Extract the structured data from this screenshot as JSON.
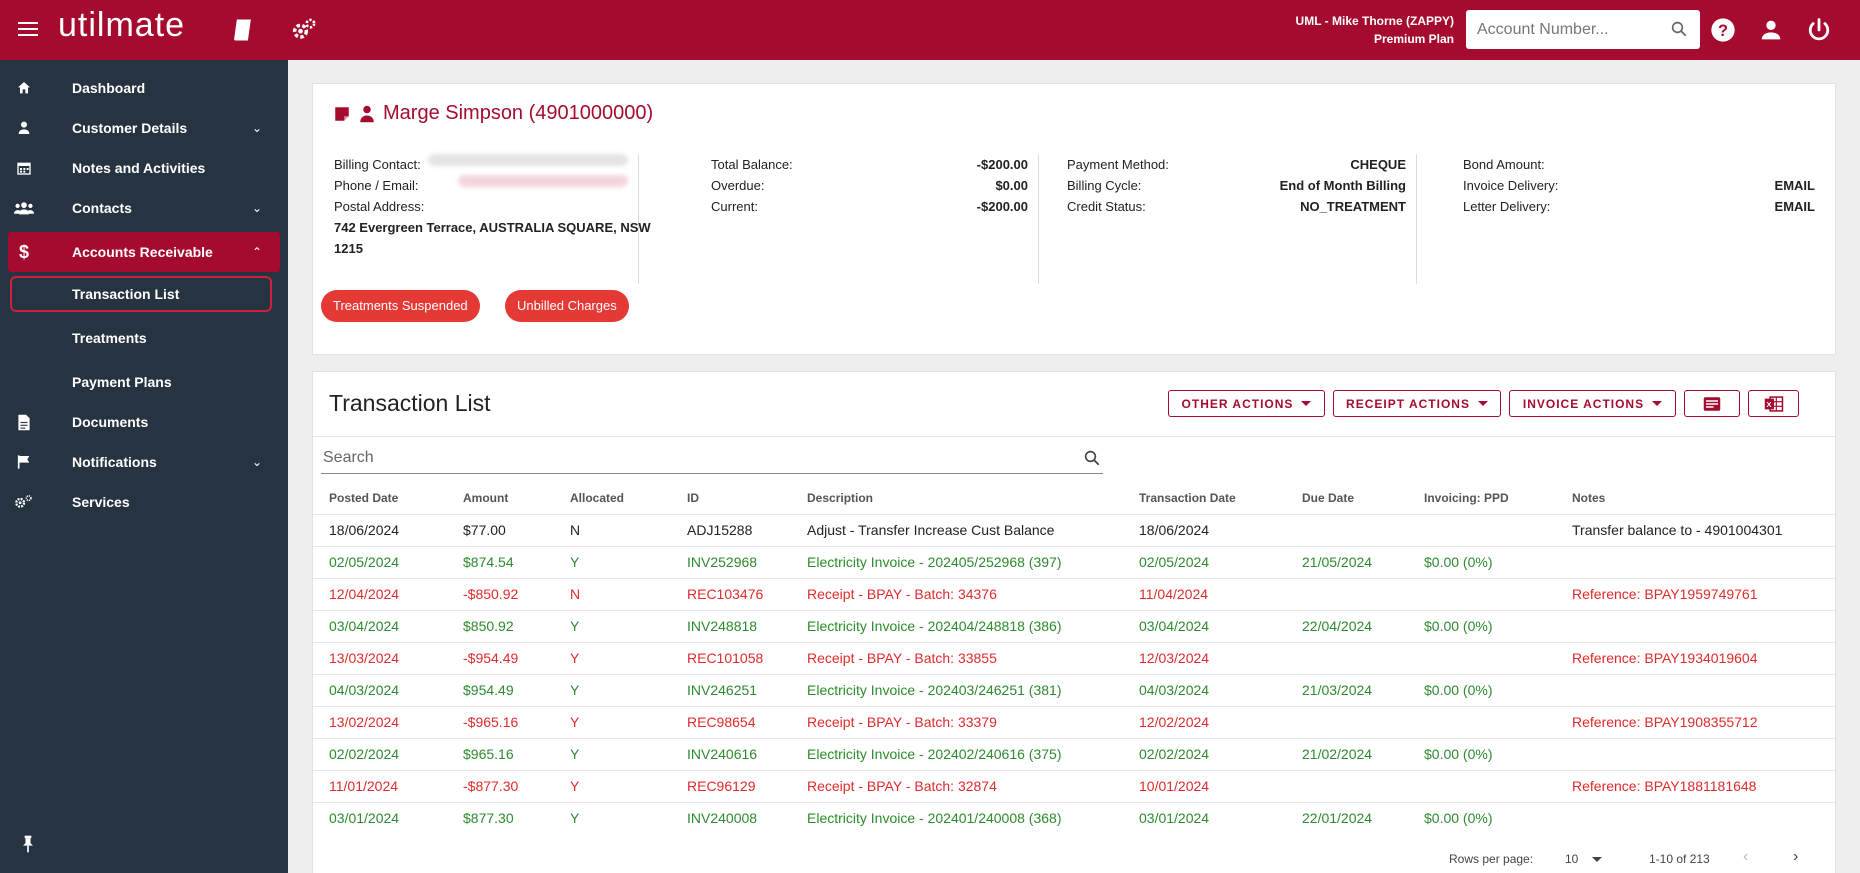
{
  "header": {
    "logo": "utilmate",
    "user_line1": "UML - Mike Thorne (ZAPPY)",
    "user_line2": "Premium Plan",
    "account_search_placeholder": "Account Number...",
    "brand_color": "#a50b2e"
  },
  "sidebar": {
    "items": [
      {
        "label": "Dashboard",
        "icon": "home-icon"
      },
      {
        "label": "Customer Details",
        "icon": "person-icon"
      },
      {
        "label": "Notes and Activities",
        "icon": "calendar-icon"
      },
      {
        "label": "Contacts",
        "icon": "people-icon"
      },
      {
        "label": "Accounts Receivable",
        "icon": "dollar-icon"
      },
      {
        "label": "Transaction List"
      },
      {
        "label": "Treatments"
      },
      {
        "label": "Payment Plans"
      },
      {
        "label": "Documents",
        "icon": "document-icon"
      },
      {
        "label": "Notifications",
        "icon": "flag-icon"
      },
      {
        "label": "Services",
        "icon": "cogs-icon"
      }
    ]
  },
  "customer": {
    "title": "Marge Simpson (4901000000)",
    "billing_contact_label": "Billing Contact:",
    "phone_email_label": "Phone / Email:",
    "postal_address_label": "Postal Address:",
    "postal_address": "742 Evergreen Terrace, AUSTRALIA SQUARE, NSW 1215",
    "total_balance_label": "Total Balance:",
    "total_balance": "-$200.00",
    "overdue_label": "Overdue:",
    "overdue": "$0.00",
    "current_label": "Current:",
    "current": "-$200.00",
    "payment_method_label": "Payment Method:",
    "payment_method": "CHEQUE",
    "billing_cycle_label": "Billing Cycle:",
    "billing_cycle": "End of Month Billing",
    "credit_status_label": "Credit Status:",
    "credit_status": "NO_TREATMENT",
    "bond_amount_label": "Bond Amount:",
    "invoice_delivery_label": "Invoice Delivery:",
    "invoice_delivery": "EMAIL",
    "letter_delivery_label": "Letter Delivery:",
    "letter_delivery": "EMAIL",
    "badges": [
      "Treatments Suspended",
      "Unbilled Charges"
    ]
  },
  "transactions": {
    "title": "Transaction List",
    "buttons": {
      "other": "OTHER ACTIONS",
      "receipt": "RECEIPT ACTIONS",
      "invoice": "INVOICE ACTIONS"
    },
    "search_placeholder": "Search",
    "columns": [
      "Posted Date",
      "Amount",
      "Allocated",
      "ID",
      "Description",
      "Transaction Date",
      "Due Date",
      "Invoicing: PPD",
      "Notes"
    ],
    "rows": [
      {
        "type": "neutral",
        "cells": [
          "18/06/2024",
          "$77.00",
          "N",
          "ADJ15288",
          "Adjust - Transfer Increase Cust Balance",
          "18/06/2024",
          "",
          "",
          "Transfer balance to - 4901004301"
        ]
      },
      {
        "type": "green",
        "cells": [
          "02/05/2024",
          "$874.54",
          "Y",
          "INV252968",
          "Electricity Invoice - 202405/252968 (397)",
          "02/05/2024",
          "21/05/2024",
          "$0.00 (0%)",
          ""
        ]
      },
      {
        "type": "red",
        "cells": [
          "12/04/2024",
          "-$850.92",
          "N",
          "REC103476",
          "Receipt - BPAY - Batch: 34376",
          "11/04/2024",
          "",
          "",
          "Reference: BPAY1959749761"
        ]
      },
      {
        "type": "green",
        "cells": [
          "03/04/2024",
          "$850.92",
          "Y",
          "INV248818",
          "Electricity Invoice - 202404/248818 (386)",
          "03/04/2024",
          "22/04/2024",
          "$0.00 (0%)",
          ""
        ]
      },
      {
        "type": "red",
        "cells": [
          "13/03/2024",
          "-$954.49",
          "Y",
          "REC101058",
          "Receipt - BPAY - Batch: 33855",
          "12/03/2024",
          "",
          "",
          "Reference: BPAY1934019604"
        ]
      },
      {
        "type": "green",
        "cells": [
          "04/03/2024",
          "$954.49",
          "Y",
          "INV246251",
          "Electricity Invoice - 202403/246251 (381)",
          "04/03/2024",
          "21/03/2024",
          "$0.00 (0%)",
          ""
        ]
      },
      {
        "type": "red",
        "cells": [
          "13/02/2024",
          "-$965.16",
          "Y",
          "REC98654",
          "Receipt - BPAY - Batch: 33379",
          "12/02/2024",
          "",
          "",
          "Reference: BPAY1908355712"
        ]
      },
      {
        "type": "green",
        "cells": [
          "02/02/2024",
          "$965.16",
          "Y",
          "INV240616",
          "Electricity Invoice - 202402/240616 (375)",
          "02/02/2024",
          "21/02/2024",
          "$0.00 (0%)",
          ""
        ]
      },
      {
        "type": "red",
        "cells": [
          "11/01/2024",
          "-$877.30",
          "Y",
          "REC96129",
          "Receipt - BPAY - Batch: 32874",
          "10/01/2024",
          "",
          "",
          "Reference: BPAY1881181648"
        ]
      },
      {
        "type": "green",
        "cells": [
          "03/01/2024",
          "$877.30",
          "Y",
          "INV240008",
          "Electricity Invoice - 202401/240008 (368)",
          "03/01/2024",
          "22/01/2024",
          "$0.00 (0%)",
          ""
        ]
      }
    ],
    "pagination": {
      "rows_per_page_label": "Rows per page:",
      "rows_per_page": "10",
      "range": "1-10 of 213"
    }
  }
}
